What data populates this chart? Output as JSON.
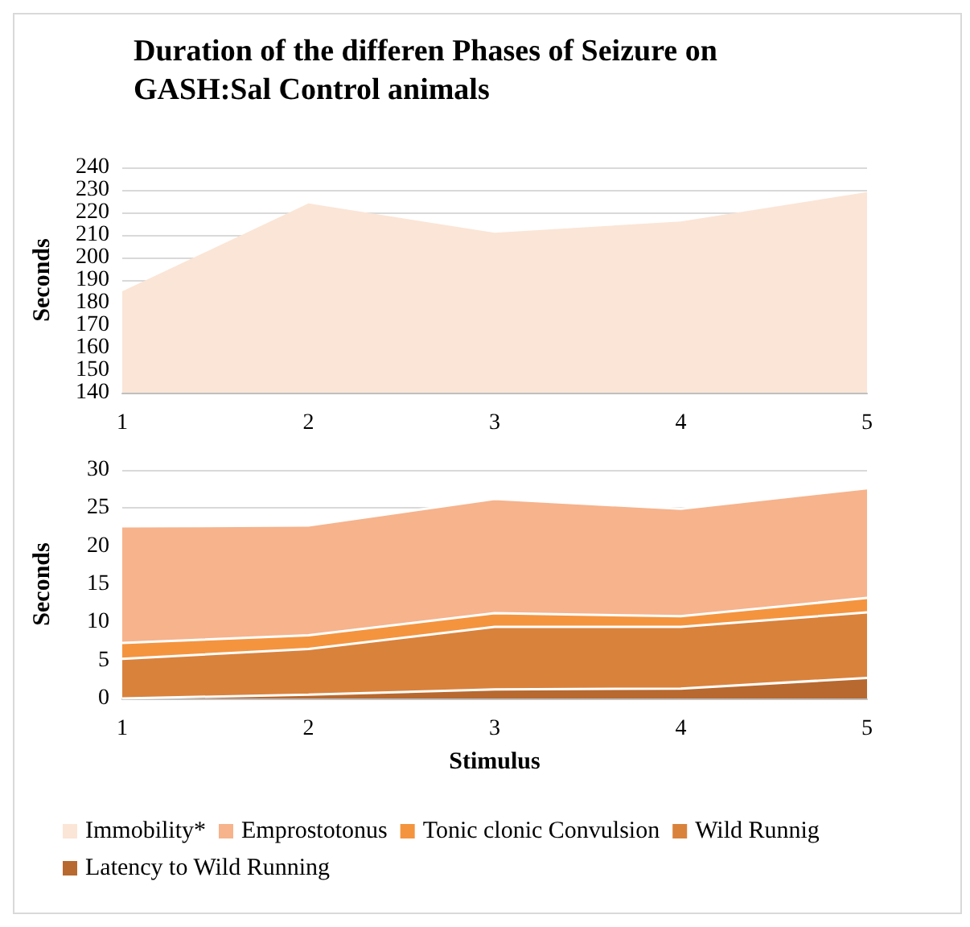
{
  "chart_data": [
    {
      "type": "area",
      "title": "Duration of the differen Phases of Seizure on GASH:Sal Control animals",
      "ylabel": "Seconds",
      "categories": [
        "1",
        "2",
        "3",
        "4",
        "5"
      ],
      "ylim": [
        140,
        240
      ],
      "yticks": [
        140,
        150,
        160,
        170,
        180,
        190,
        200,
        210,
        220,
        230,
        240
      ],
      "grid": "y",
      "legend": "bottom",
      "series": [
        {
          "name": "Immobility*",
          "color": "#fbe5d6",
          "values": [
            185,
            224,
            211,
            216,
            229
          ]
        }
      ]
    },
    {
      "type": "area",
      "xlabel": "Stimulus",
      "ylabel": "Seconds",
      "categories": [
        "1",
        "2",
        "3",
        "4",
        "5"
      ],
      "ylim": [
        0,
        30
      ],
      "yticks": [
        0,
        5,
        10,
        15,
        20,
        25,
        30
      ],
      "grid": "y",
      "legend": "bottom",
      "stacked": true,
      "series": [
        {
          "name": "Latency to Wild Running",
          "color": "#b8692f",
          "values": [
            0,
            0.5,
            1.2,
            1.3,
            2.7
          ]
        },
        {
          "name": "Wild Runnig",
          "color": "#d9823c",
          "values": [
            5.2,
            6,
            8.2,
            8.1,
            8.6
          ]
        },
        {
          "name": "Tonic clonic Convulsion",
          "color": "#f4943f",
          "values": [
            2.1,
            1.8,
            1.8,
            1.4,
            1.9
          ]
        },
        {
          "name": "Emprostotonus",
          "color": "#f6b38c",
          "values": [
            15.3,
            14.4,
            15,
            14.1,
            14.4
          ]
        }
      ]
    }
  ]
}
